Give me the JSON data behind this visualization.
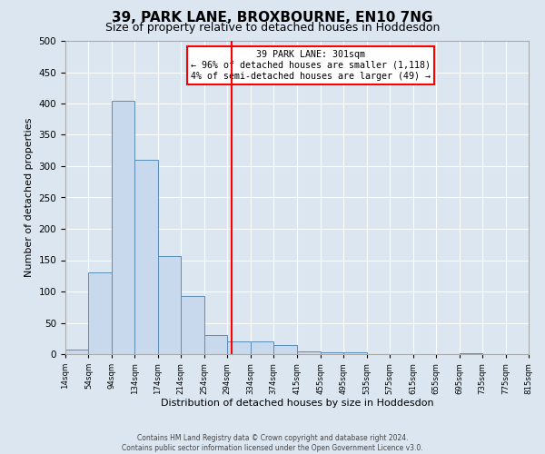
{
  "title": "39, PARK LANE, BROXBOURNE, EN10 7NG",
  "subtitle": "Size of property relative to detached houses in Hoddesdon",
  "xlabel": "Distribution of detached houses by size in Hoddesdon",
  "ylabel": "Number of detached properties",
  "bin_edges": [
    14,
    54,
    94,
    134,
    174,
    214,
    254,
    294,
    334,
    374,
    415,
    455,
    495,
    535,
    575,
    615,
    655,
    695,
    735,
    775,
    815
  ],
  "bar_heights": [
    7,
    130,
    405,
    310,
    157,
    93,
    30,
    20,
    20,
    14,
    5,
    3,
    3,
    0,
    0,
    0,
    0,
    1,
    0,
    0
  ],
  "bar_color": "#c9d9ed",
  "bar_edge_color": "#5b8db8",
  "reference_line_x": 301,
  "reference_line_color": "red",
  "annotation_title": "39 PARK LANE: 301sqm",
  "annotation_line1": "← 96% of detached houses are smaller (1,118)",
  "annotation_line2": "4% of semi-detached houses are larger (49) →",
  "ylim": [
    0,
    500
  ],
  "yticks": [
    0,
    50,
    100,
    150,
    200,
    250,
    300,
    350,
    400,
    450,
    500
  ],
  "footnote1": "Contains HM Land Registry data © Crown copyright and database right 2024.",
  "footnote2": "Contains public sector information licensed under the Open Government Licence v3.0.",
  "background_color": "#dce6f1",
  "plot_background": "#dce6f1",
  "title_fontsize": 11,
  "subtitle_fontsize": 9,
  "xlabel_fontsize": 8,
  "ylabel_fontsize": 8
}
